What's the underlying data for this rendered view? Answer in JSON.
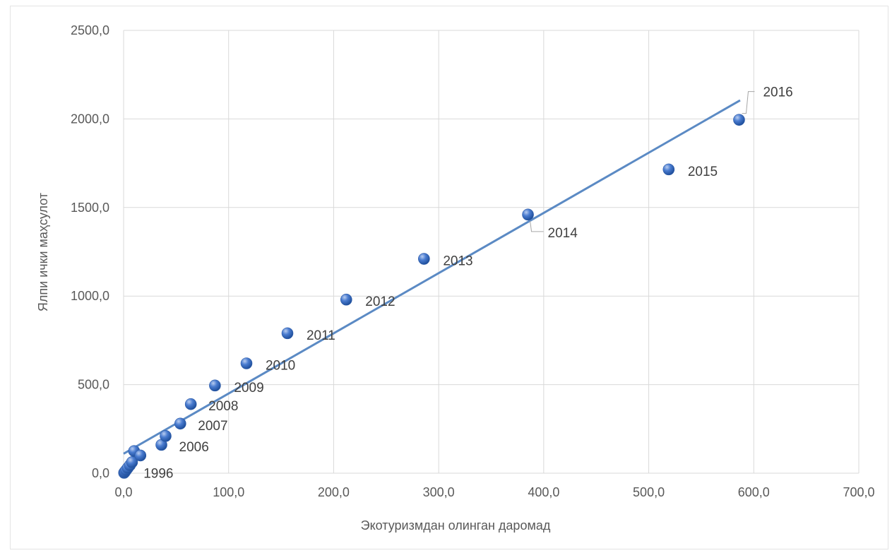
{
  "chart_data": {
    "type": "scatter",
    "xlabel": "Экотуризмдан олинган даромад",
    "ylabel": "Ялпи ички маҳсулот",
    "xlim": [
      0,
      700
    ],
    "ylim": [
      0,
      2500
    ],
    "xticks": [
      "0,0",
      "100,0",
      "200,0",
      "300,0",
      "400,0",
      "500,0",
      "600,0",
      "700,0"
    ],
    "yticks": [
      "0,0",
      "500,0",
      "1000,0",
      "1500,0",
      "2000,0",
      "2500,0"
    ],
    "grid": true,
    "trendline": {
      "type": "linear",
      "x": [
        0,
        587
      ],
      "y": [
        110,
        2105
      ]
    },
    "marker_color": "#4472c4",
    "line_color": "#5b8ac4",
    "points": [
      {
        "x": 0.5,
        "y": 2,
        "label": ""
      },
      {
        "x": 1.0,
        "y": 6,
        "label": ""
      },
      {
        "x": 1.5,
        "y": 10,
        "label": "1996"
      },
      {
        "x": 2.5,
        "y": 18,
        "label": ""
      },
      {
        "x": 4.0,
        "y": 30,
        "label": ""
      },
      {
        "x": 6.0,
        "y": 45,
        "label": ""
      },
      {
        "x": 8.0,
        "y": 62,
        "label": ""
      },
      {
        "x": 10.0,
        "y": 125,
        "label": ""
      },
      {
        "x": 16.0,
        "y": 100,
        "label": ""
      },
      {
        "x": 36.0,
        "y": 160,
        "label": "2006"
      },
      {
        "x": 40.0,
        "y": 210,
        "label": ""
      },
      {
        "x": 54.0,
        "y": 280,
        "label": "2007"
      },
      {
        "x": 64.0,
        "y": 390,
        "label": "2008"
      },
      {
        "x": 87.0,
        "y": 495,
        "label": "2009"
      },
      {
        "x": 117.0,
        "y": 620,
        "label": "2010"
      },
      {
        "x": 156.0,
        "y": 790,
        "label": "2011"
      },
      {
        "x": 212.0,
        "y": 980,
        "label": "2012"
      },
      {
        "x": 286.0,
        "y": 1210,
        "label": "2013"
      },
      {
        "x": 385.0,
        "y": 1460,
        "label": "2014"
      },
      {
        "x": 519.0,
        "y": 1715,
        "label": "2015"
      },
      {
        "x": 586.0,
        "y": 1995,
        "label": "2016"
      }
    ]
  }
}
